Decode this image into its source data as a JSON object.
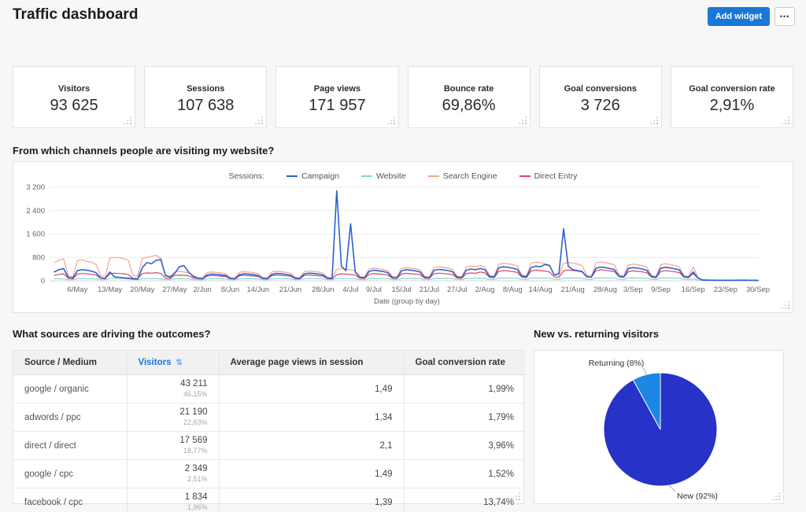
{
  "header": {
    "title": "Traffic dashboard",
    "add_widget_label": "Add widget",
    "more_label": "•••"
  },
  "kpis": [
    {
      "label": "Visitors",
      "value": "93 625"
    },
    {
      "label": "Sessions",
      "value": "107 638"
    },
    {
      "label": "Page views",
      "value": "171 957"
    },
    {
      "label": "Bounce rate",
      "value": "69,86%"
    },
    {
      "label": "Goal conversions",
      "value": "3 726"
    },
    {
      "label": "Goal conversion rate",
      "value": "2,91%"
    }
  ],
  "sections": {
    "channels_title": "From which channels people are visiting my website?",
    "sources_title": "What sources are driving the outcomes?",
    "pie_title": "New vs. returning visitors"
  },
  "sources_table": {
    "columns": [
      "Source / Medium",
      "Visitors",
      "Average page views in session",
      "Goal conversion rate"
    ],
    "sort_icon": "⇅",
    "rows": [
      {
        "source": "google / organic",
        "visitors": "43 211",
        "visitors_share": "46,15%",
        "avg_pageviews": "1,49",
        "goal_rate": "1,99%"
      },
      {
        "source": "adwords / ppc",
        "visitors": "21 190",
        "visitors_share": "22,63%",
        "avg_pageviews": "1,34",
        "goal_rate": "1,79%"
      },
      {
        "source": "direct / direct",
        "visitors": "17 569",
        "visitors_share": "18,77%",
        "avg_pageviews": "2,1",
        "goal_rate": "3,96%"
      },
      {
        "source": "google / cpc",
        "visitors": "2 349",
        "visitors_share": "2,51%",
        "avg_pageviews": "1,49",
        "goal_rate": "1,52%"
      },
      {
        "source": "facebook / cpc",
        "visitors": "1 834",
        "visitors_share": "1,96%",
        "avg_pageviews": "1,39",
        "goal_rate": "13,74%"
      }
    ]
  },
  "chart_data": [
    {
      "type": "line",
      "title": "From which channels people are visiting my website?",
      "legend_title": "Sessions:",
      "legend_position": "top",
      "grid": true,
      "xlabel": "Date (group by day)",
      "ylim": [
        0,
        3200
      ],
      "day_range": 152,
      "day_step": 1,
      "yticks": [
        {
          "label": "3 200",
          "value": 3200
        },
        {
          "label": "2 400",
          "value": 2400
        },
        {
          "label": "1 600",
          "value": 1600
        },
        {
          "label": "800",
          "value": 800
        },
        {
          "label": "0",
          "value": 0
        }
      ],
      "xticks": [
        {
          "label": "6/May",
          "day": 5
        },
        {
          "label": "13/May",
          "day": 12
        },
        {
          "label": "20/May",
          "day": 19
        },
        {
          "label": "27/May",
          "day": 26
        },
        {
          "label": "2/Jun",
          "day": 32
        },
        {
          "label": "8/Jun",
          "day": 38
        },
        {
          "label": "14/Jun",
          "day": 44
        },
        {
          "label": "21/Jun",
          "day": 51
        },
        {
          "label": "28/Jun",
          "day": 58
        },
        {
          "label": "4/Jul",
          "day": 64
        },
        {
          "label": "9/Jul",
          "day": 69
        },
        {
          "label": "15/Jul",
          "day": 75
        },
        {
          "label": "21/Jul",
          "day": 81
        },
        {
          "label": "27/Jul",
          "day": 87
        },
        {
          "label": "2/Aug",
          "day": 93
        },
        {
          "label": "8/Aug",
          "day": 99
        },
        {
          "label": "14/Aug",
          "day": 105
        },
        {
          "label": "21/Aug",
          "day": 112
        },
        {
          "label": "28/Aug",
          "day": 119
        },
        {
          "label": "3/Sep",
          "day": 125
        },
        {
          "label": "9/Sep",
          "day": 131
        },
        {
          "label": "16/Sep",
          "day": 138
        },
        {
          "label": "23/Sep",
          "day": 145
        },
        {
          "label": "30/Sep",
          "day": 152
        }
      ],
      "series": [
        {
          "name": "Campaign",
          "color": "#2e61d0",
          "values": [
            300,
            380,
            420,
            120,
            90,
            350,
            380,
            360,
            330,
            280,
            100,
            80,
            300,
            130,
            120,
            100,
            90,
            70,
            60,
            450,
            620,
            580,
            700,
            730,
            180,
            120,
            250,
            480,
            520,
            300,
            150,
            80,
            70,
            200,
            230,
            220,
            200,
            180,
            80,
            70,
            210,
            240,
            230,
            210,
            180,
            85,
            70,
            220,
            250,
            240,
            220,
            190,
            90,
            75,
            230,
            260,
            250,
            230,
            200,
            90,
            75,
            3080,
            500,
            350,
            1950,
            300,
            120,
            100,
            320,
            360,
            340,
            320,
            280,
            110,
            95,
            340,
            380,
            360,
            340,
            300,
            120,
            100,
            350,
            390,
            370,
            350,
            310,
            125,
            105,
            360,
            400,
            380,
            420,
            380,
            150,
            130,
            440,
            480,
            460,
            430,
            390,
            160,
            140,
            450,
            500,
            480,
            560,
            520,
            200,
            250,
            1780,
            500,
            380,
            350,
            320,
            140,
            120,
            430,
            470,
            450,
            420,
            380,
            150,
            130,
            420,
            450,
            430,
            400,
            360,
            140,
            120,
            430,
            460,
            440,
            410,
            370,
            140,
            120,
            300,
            100,
            25,
            20,
            20,
            15,
            15,
            15,
            15,
            15,
            20,
            20,
            15,
            15,
            10
          ]
        },
        {
          "name": "Website",
          "color": "#85d5cf",
          "values": [
            70,
            68,
            62,
            38,
            34,
            72,
            75,
            70,
            68,
            62,
            38,
            34,
            74,
            78,
            72,
            70,
            64,
            40,
            35,
            74,
            76,
            72,
            70,
            64,
            40,
            35,
            68,
            70,
            68,
            64,
            40,
            36,
            32,
            66,
            70,
            68,
            66,
            60,
            36,
            32,
            68,
            72,
            70,
            68,
            62,
            37,
            33,
            70,
            74,
            72,
            70,
            64,
            38,
            34,
            72,
            76,
            74,
            72,
            66,
            38,
            34,
            74,
            78,
            76,
            74,
            68,
            40,
            36,
            76,
            80,
            78,
            76,
            70,
            42,
            38,
            78,
            82,
            80,
            78,
            72,
            42,
            38,
            80,
            84,
            82,
            80,
            74,
            44,
            40,
            82,
            86,
            84,
            86,
            80,
            46,
            42,
            88,
            92,
            90,
            88,
            82,
            48,
            44,
            90,
            95,
            92,
            90,
            84,
            48,
            44,
            92,
            96,
            94,
            92,
            86,
            50,
            46,
            94,
            98,
            96,
            94,
            88,
            50,
            46,
            92,
            96,
            94,
            92,
            86,
            48,
            44,
            94,
            98,
            96,
            94,
            88,
            48,
            44,
            60,
            30,
            16,
            15,
            14,
            13,
            13,
            13,
            13,
            13,
            14,
            14,
            13,
            13,
            12
          ]
        },
        {
          "name": "Search Engine",
          "color": "#f2a58e",
          "values": [
            620,
            700,
            750,
            180,
            140,
            700,
            720,
            660,
            640,
            560,
            170,
            140,
            780,
            800,
            790,
            760,
            700,
            190,
            150,
            760,
            800,
            840,
            870,
            760,
            200,
            150,
            300,
            320,
            300,
            280,
            180,
            120,
            100,
            280,
            300,
            290,
            270,
            240,
            110,
            95,
            290,
            310,
            300,
            280,
            250,
            115,
            100,
            300,
            320,
            310,
            290,
            260,
            120,
            100,
            310,
            330,
            320,
            300,
            260,
            120,
            105,
            380,
            420,
            400,
            380,
            340,
            140,
            120,
            400,
            430,
            410,
            390,
            350,
            150,
            130,
            420,
            450,
            430,
            410,
            370,
            150,
            130,
            450,
            480,
            460,
            430,
            390,
            160,
            140,
            470,
            500,
            480,
            520,
            470,
            180,
            150,
            560,
            600,
            580,
            550,
            500,
            190,
            160,
            600,
            640,
            620,
            580,
            530,
            200,
            170,
            590,
            620,
            600,
            570,
            520,
            190,
            160,
            610,
            650,
            620,
            590,
            540,
            200,
            160,
            540,
            570,
            550,
            520,
            470,
            180,
            150,
            550,
            580,
            560,
            530,
            480,
            180,
            150,
            480,
            120,
            40,
            30,
            30,
            25,
            25,
            25,
            25,
            25,
            30,
            30,
            25,
            25,
            20
          ]
        },
        {
          "name": "Direct Entry",
          "color": "#d5485f",
          "values": [
            180,
            220,
            240,
            90,
            70,
            230,
            250,
            240,
            220,
            200,
            85,
            70,
            240,
            260,
            250,
            240,
            210,
            90,
            75,
            250,
            270,
            260,
            280,
            250,
            95,
            75,
            180,
            190,
            185,
            170,
            100,
            75,
            65,
            160,
            180,
            170,
            160,
            145,
            70,
            60,
            170,
            185,
            175,
            165,
            150,
            72,
            62,
            175,
            190,
            180,
            170,
            155,
            75,
            65,
            180,
            195,
            185,
            172,
            158,
            75,
            65,
            210,
            240,
            225,
            215,
            195,
            90,
            78,
            220,
            245,
            232,
            220,
            200,
            92,
            80,
            230,
            255,
            240,
            228,
            206,
            95,
            82,
            238,
            262,
            248,
            235,
            212,
            98,
            85,
            245,
            270,
            255,
            300,
            270,
            120,
            105,
            320,
            350,
            335,
            315,
            285,
            125,
            110,
            335,
            365,
            348,
            330,
            298,
            130,
            112,
            340,
            372,
            352,
            335,
            302,
            132,
            115,
            345,
            378,
            358,
            340,
            308,
            135,
            115,
            310,
            338,
            322,
            305,
            276,
            120,
            105,
            318,
            345,
            328,
            310,
            280,
            122,
            106,
            250,
            90,
            30,
            25,
            25,
            22,
            22,
            22,
            22,
            22,
            25,
            25,
            22,
            22,
            18
          ]
        }
      ]
    },
    {
      "type": "pie",
      "title": "New vs. returning visitors",
      "slices": [
        {
          "id": "new",
          "label": "New",
          "pct": 92,
          "label_text": "New (92%)",
          "color": "#2732c9"
        },
        {
          "id": "returning",
          "label": "Returning",
          "pct": 8,
          "label_text": "Returning (8%)",
          "color": "#1d87e4"
        }
      ]
    }
  ]
}
